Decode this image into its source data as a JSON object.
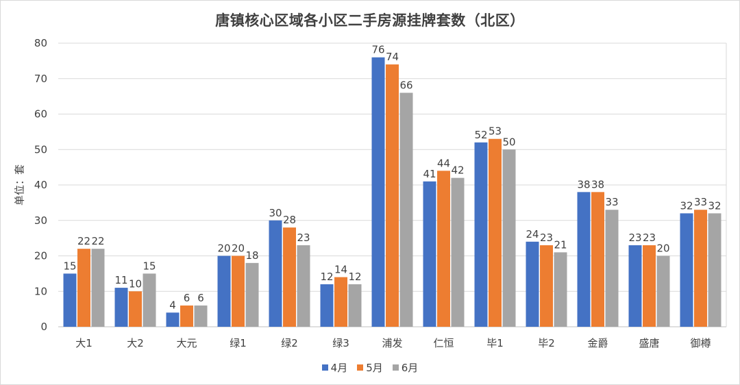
{
  "chart_data": {
    "type": "bar",
    "title": "唐镇核心区域各小区二手房源挂牌套数（北区）",
    "ylabel": "单位：套",
    "xlabel": "",
    "ylim": [
      0,
      80
    ],
    "yticks": [
      0,
      10,
      20,
      30,
      40,
      50,
      60,
      70,
      80
    ],
    "grid": true,
    "legend_position": "bottom",
    "categories": [
      "大1",
      "大2",
      "大元",
      "绿1",
      "绿2",
      "绿3",
      "浦发",
      "仁恒",
      "毕1",
      "毕2",
      "金爵",
      "盛唐",
      "御樽"
    ],
    "series": [
      {
        "name": "4月",
        "color": "#4472c4",
        "values": [
          15,
          11,
          4,
          20,
          30,
          12,
          76,
          41,
          52,
          24,
          38,
          23,
          32
        ]
      },
      {
        "name": "5月",
        "color": "#ed7d31",
        "values": [
          22,
          10,
          6,
          20,
          28,
          14,
          74,
          44,
          53,
          23,
          38,
          23,
          33
        ]
      },
      {
        "name": "6月",
        "color": "#a5a5a5",
        "values": [
          22,
          15,
          6,
          18,
          23,
          12,
          66,
          42,
          50,
          21,
          33,
          20,
          32
        ]
      }
    ]
  }
}
